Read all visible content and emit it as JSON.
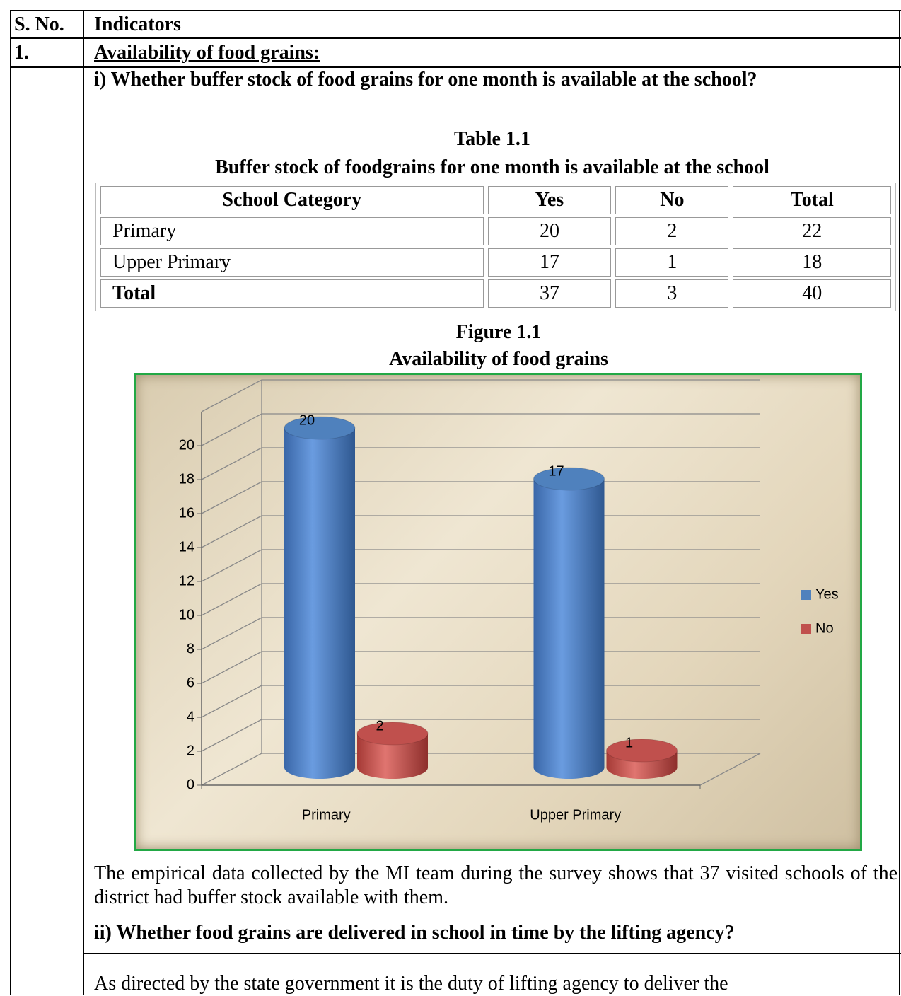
{
  "header": {
    "sno": "S. No.",
    "indicators": "Indicators"
  },
  "section": {
    "number": "1.",
    "title": "Availability of food grains:"
  },
  "question1": "i) Whether buffer stock of food grains for one month is available at the school?",
  "table": {
    "caption": "Table 1.1",
    "title": "Buffer stock of foodgrains for one month is available at the school",
    "columns": [
      "School Category",
      "Yes",
      "No",
      "Total"
    ],
    "rows": [
      [
        "Primary",
        20,
        2,
        22
      ],
      [
        "Upper Primary",
        17,
        1,
        18
      ],
      [
        "Total",
        37,
        3,
        40
      ]
    ]
  },
  "figure_caption": "Figure 1.1",
  "chart_data": {
    "type": "cylinder3d",
    "title": "Availability of food grains",
    "categories": [
      "Primary",
      "Upper Primary"
    ],
    "series": [
      {
        "name": "Yes",
        "color": "#4f81bd",
        "values": [
          20,
          17
        ]
      },
      {
        "name": "No",
        "color": "#c0504d",
        "values": [
          2,
          1
        ]
      }
    ],
    "ylim": [
      0,
      22
    ],
    "yticks": [
      0,
      2,
      4,
      6,
      8,
      10,
      12,
      14,
      16,
      18,
      20
    ],
    "grid": true,
    "legend": "right"
  },
  "paragraph1": "The empirical data collected by the MI team during the survey shows that 37 visited schools of the district had buffer stock available with them.",
  "question2": "ii) Whether food grains are delivered in school in time by the lifting agency?",
  "paragraph2": "As directed by the state government it is the duty of lifting agency to deliver the"
}
